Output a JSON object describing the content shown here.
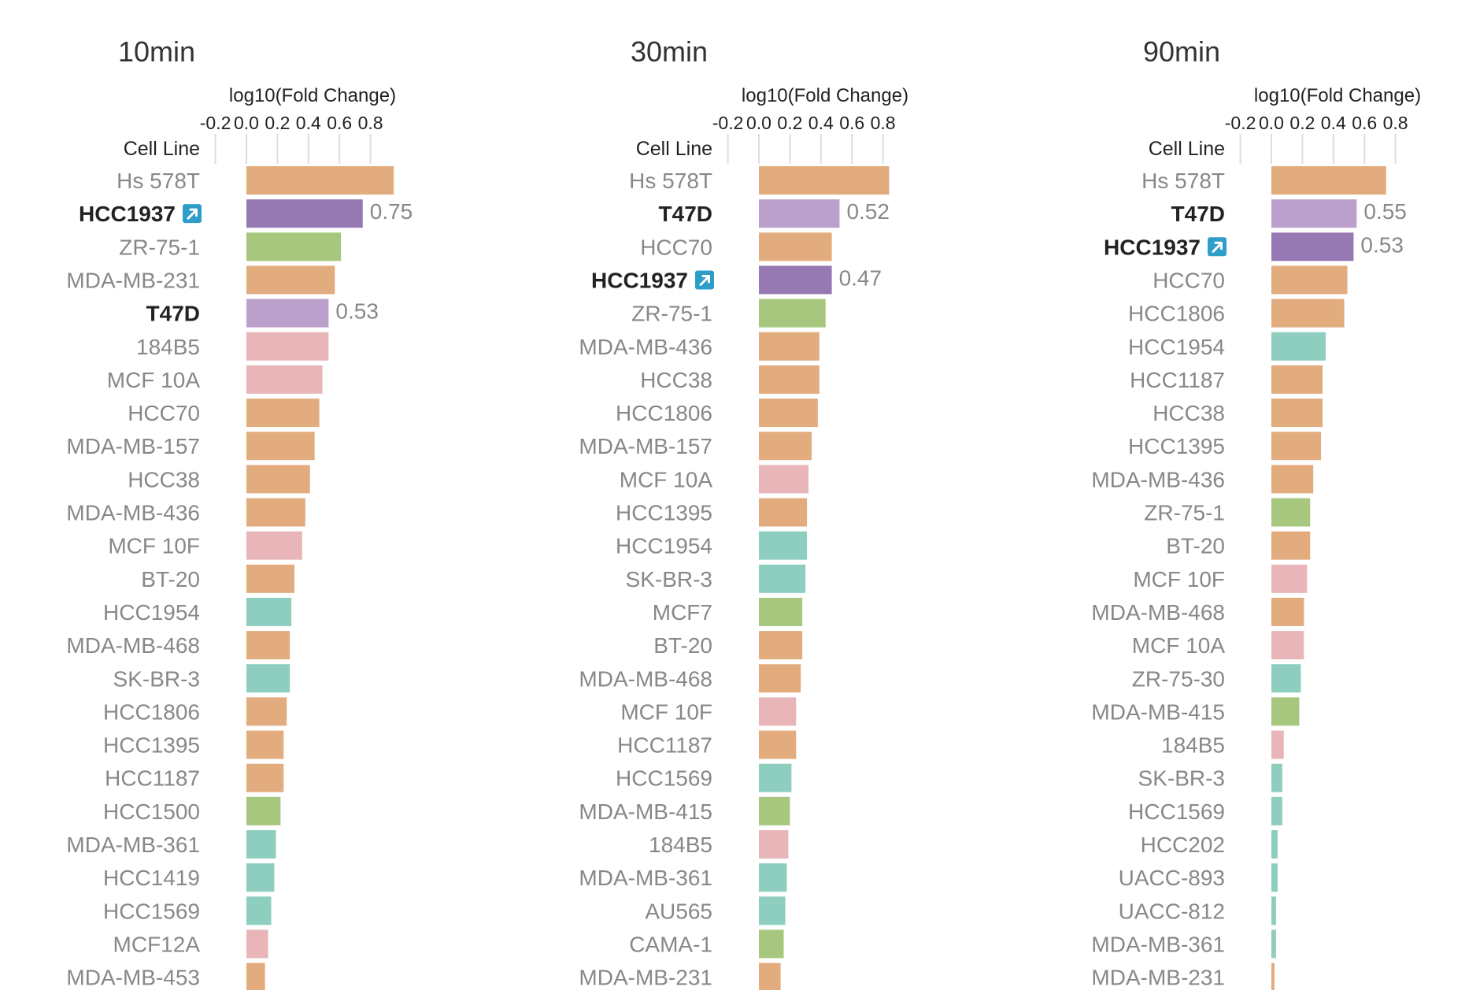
{
  "colors": {
    "cell_type_orange": "#e2ac7f",
    "cell_type_green": "#a7c77e",
    "cell_type_pink": "#e8b6b9",
    "cell_type_teal": "#8ecebf",
    "highlight_dark_purple": "#9679b2",
    "highlight_light_purple": "#bba0cc",
    "link_icon": "#2e9ec9"
  },
  "chart_data": [
    {
      "type": "bar",
      "orientation": "horizontal",
      "title": "10min",
      "xlabel": "log10(Fold Change)",
      "ylabel": "Cell Line",
      "x_ticks": [
        "-0.2",
        "0.0",
        "0.2",
        "0.4",
        "0.6",
        "0.8"
      ],
      "xlim": [
        -0.2,
        0.8
      ],
      "grid": true,
      "rows": [
        {
          "label": "Hs 578T",
          "value": 0.95,
          "color": "orange"
        },
        {
          "label": "HCC1937",
          "value": 0.75,
          "color": "dark-purple",
          "highlight": true,
          "link_icon": true,
          "value_label": "0.75"
        },
        {
          "label": "ZR-75-1",
          "value": 0.61,
          "color": "green"
        },
        {
          "label": "MDA-MB-231",
          "value": 0.57,
          "color": "orange"
        },
        {
          "label": "T47D",
          "value": 0.53,
          "color": "light-purple",
          "highlight": true,
          "value_label": "0.53"
        },
        {
          "label": "184B5",
          "value": 0.53,
          "color": "pink"
        },
        {
          "label": "MCF 10A",
          "value": 0.49,
          "color": "pink"
        },
        {
          "label": "HCC70",
          "value": 0.47,
          "color": "orange"
        },
        {
          "label": "MDA-MB-157",
          "value": 0.44,
          "color": "orange"
        },
        {
          "label": "HCC38",
          "value": 0.41,
          "color": "orange"
        },
        {
          "label": "MDA-MB-436",
          "value": 0.38,
          "color": "orange"
        },
        {
          "label": "MCF 10F",
          "value": 0.36,
          "color": "pink"
        },
        {
          "label": "BT-20",
          "value": 0.31,
          "color": "orange"
        },
        {
          "label": "HCC1954",
          "value": 0.29,
          "color": "teal"
        },
        {
          "label": "MDA-MB-468",
          "value": 0.28,
          "color": "orange"
        },
        {
          "label": "SK-BR-3",
          "value": 0.28,
          "color": "teal"
        },
        {
          "label": "HCC1806",
          "value": 0.26,
          "color": "orange"
        },
        {
          "label": "HCC1395",
          "value": 0.24,
          "color": "orange"
        },
        {
          "label": "HCC1187",
          "value": 0.24,
          "color": "orange"
        },
        {
          "label": "HCC1500",
          "value": 0.22,
          "color": "green"
        },
        {
          "label": "MDA-MB-361",
          "value": 0.19,
          "color": "teal"
        },
        {
          "label": "HCC1419",
          "value": 0.18,
          "color": "teal"
        },
        {
          "label": "HCC1569",
          "value": 0.16,
          "color": "teal"
        },
        {
          "label": "MCF12A",
          "value": 0.14,
          "color": "pink"
        },
        {
          "label": "MDA-MB-453",
          "value": 0.12,
          "color": "orange"
        }
      ]
    },
    {
      "type": "bar",
      "orientation": "horizontal",
      "title": "30min",
      "xlabel": "log10(Fold Change)",
      "ylabel": "Cell Line",
      "x_ticks": [
        "-0.2",
        "0.0",
        "0.2",
        "0.4",
        "0.6",
        "0.8"
      ],
      "xlim": [
        -0.2,
        0.8
      ],
      "grid": true,
      "rows": [
        {
          "label": "Hs 578T",
          "value": 0.84,
          "color": "orange"
        },
        {
          "label": "T47D",
          "value": 0.52,
          "color": "light-purple",
          "highlight": true,
          "value_label": "0.52"
        },
        {
          "label": "HCC70",
          "value": 0.47,
          "color": "orange"
        },
        {
          "label": "HCC1937",
          "value": 0.47,
          "color": "dark-purple",
          "highlight": true,
          "link_icon": true,
          "value_label": "0.47"
        },
        {
          "label": "ZR-75-1",
          "value": 0.43,
          "color": "green"
        },
        {
          "label": "MDA-MB-436",
          "value": 0.39,
          "color": "orange"
        },
        {
          "label": "HCC38",
          "value": 0.39,
          "color": "orange"
        },
        {
          "label": "HCC1806",
          "value": 0.38,
          "color": "orange"
        },
        {
          "label": "MDA-MB-157",
          "value": 0.34,
          "color": "orange"
        },
        {
          "label": "MCF 10A",
          "value": 0.32,
          "color": "pink"
        },
        {
          "label": "HCC1395",
          "value": 0.31,
          "color": "orange"
        },
        {
          "label": "HCC1954",
          "value": 0.31,
          "color": "teal"
        },
        {
          "label": "SK-BR-3",
          "value": 0.3,
          "color": "teal"
        },
        {
          "label": "MCF7",
          "value": 0.28,
          "color": "green"
        },
        {
          "label": "BT-20",
          "value": 0.28,
          "color": "orange"
        },
        {
          "label": "MDA-MB-468",
          "value": 0.27,
          "color": "orange"
        },
        {
          "label": "MCF 10F",
          "value": 0.24,
          "color": "pink"
        },
        {
          "label": "HCC1187",
          "value": 0.24,
          "color": "orange"
        },
        {
          "label": "HCC1569",
          "value": 0.21,
          "color": "teal"
        },
        {
          "label": "MDA-MB-415",
          "value": 0.2,
          "color": "green"
        },
        {
          "label": "184B5",
          "value": 0.19,
          "color": "pink"
        },
        {
          "label": "MDA-MB-361",
          "value": 0.18,
          "color": "teal"
        },
        {
          "label": "AU565",
          "value": 0.17,
          "color": "teal"
        },
        {
          "label": "CAMA-1",
          "value": 0.16,
          "color": "green"
        },
        {
          "label": "MDA-MB-231",
          "value": 0.14,
          "color": "orange"
        }
      ]
    },
    {
      "type": "bar",
      "orientation": "horizontal",
      "title": "90min",
      "xlabel": "log10(Fold Change)",
      "ylabel": "Cell Line",
      "x_ticks": [
        "-0.2",
        "0.0",
        "0.2",
        "0.4",
        "0.6",
        "0.8"
      ],
      "xlim": [
        -0.2,
        0.8
      ],
      "grid": true,
      "rows": [
        {
          "label": "Hs 578T",
          "value": 0.74,
          "color": "orange"
        },
        {
          "label": "T47D",
          "value": 0.55,
          "color": "light-purple",
          "highlight": true,
          "value_label": "0.55"
        },
        {
          "label": "HCC1937",
          "value": 0.53,
          "color": "dark-purple",
          "highlight": true,
          "link_icon": true,
          "value_label": "0.53"
        },
        {
          "label": "HCC70",
          "value": 0.49,
          "color": "orange"
        },
        {
          "label": "HCC1806",
          "value": 0.47,
          "color": "orange"
        },
        {
          "label": "HCC1954",
          "value": 0.35,
          "color": "teal"
        },
        {
          "label": "HCC1187",
          "value": 0.33,
          "color": "orange"
        },
        {
          "label": "HCC38",
          "value": 0.33,
          "color": "orange"
        },
        {
          "label": "HCC1395",
          "value": 0.32,
          "color": "orange"
        },
        {
          "label": "MDA-MB-436",
          "value": 0.27,
          "color": "orange"
        },
        {
          "label": "ZR-75-1",
          "value": 0.25,
          "color": "green"
        },
        {
          "label": "BT-20",
          "value": 0.25,
          "color": "orange"
        },
        {
          "label": "MCF 10F",
          "value": 0.23,
          "color": "pink"
        },
        {
          "label": "MDA-MB-468",
          "value": 0.21,
          "color": "orange"
        },
        {
          "label": "MCF 10A",
          "value": 0.21,
          "color": "pink"
        },
        {
          "label": "ZR-75-30",
          "value": 0.19,
          "color": "teal"
        },
        {
          "label": "MDA-MB-415",
          "value": 0.18,
          "color": "green"
        },
        {
          "label": "184B5",
          "value": 0.08,
          "color": "pink"
        },
        {
          "label": "SK-BR-3",
          "value": 0.07,
          "color": "teal"
        },
        {
          "label": "HCC1569",
          "value": 0.07,
          "color": "teal"
        },
        {
          "label": "HCC202",
          "value": 0.04,
          "color": "teal"
        },
        {
          "label": "UACC-893",
          "value": 0.04,
          "color": "teal"
        },
        {
          "label": "UACC-812",
          "value": 0.03,
          "color": "teal"
        },
        {
          "label": "MDA-MB-361",
          "value": 0.03,
          "color": "teal"
        },
        {
          "label": "MDA-MB-231",
          "value": 0.02,
          "color": "orange"
        }
      ]
    }
  ]
}
